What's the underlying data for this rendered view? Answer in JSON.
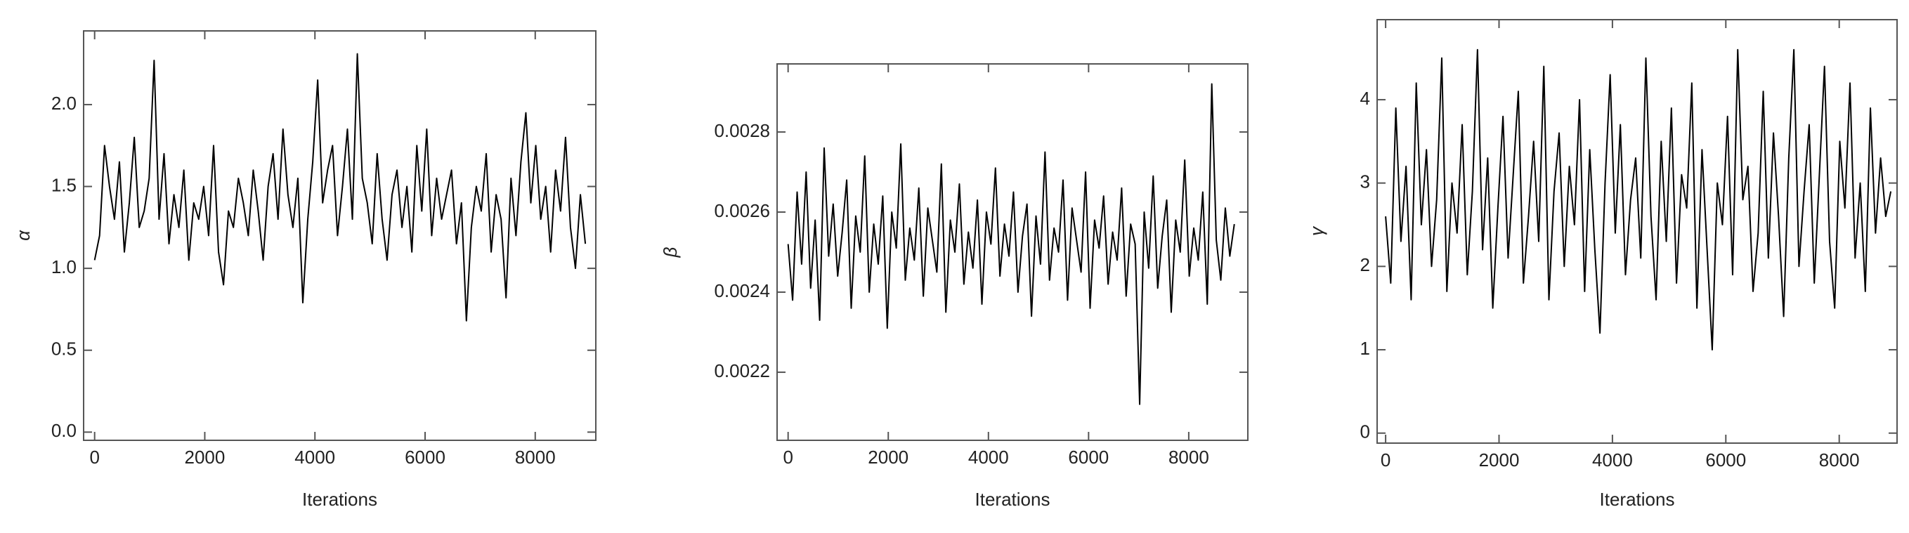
{
  "chart_data": [
    {
      "type": "line",
      "xlabel": "Iterations",
      "ylabel": "α",
      "color": "#000000",
      "xlim": [
        -200,
        9100
      ],
      "ylim": [
        -0.05,
        2.45
      ],
      "xticks": [
        0,
        2000,
        4000,
        6000,
        8000
      ],
      "yticks": [
        {
          "value": 0,
          "label": "0.0"
        },
        0.5,
        {
          "value": 1,
          "label": "1.0"
        },
        1.5,
        {
          "value": 2,
          "label": "2.0"
        }
      ],
      "x": [
        0,
        90,
        180,
        270,
        360,
        450,
        540,
        630,
        720,
        810,
        900,
        990,
        1080,
        1170,
        1260,
        1350,
        1440,
        1530,
        1620,
        1710,
        1800,
        1890,
        1980,
        2070,
        2160,
        2250,
        2340,
        2430,
        2520,
        2610,
        2700,
        2790,
        2880,
        2970,
        3060,
        3150,
        3240,
        3330,
        3420,
        3510,
        3600,
        3690,
        3780,
        3870,
        3960,
        4050,
        4140,
        4230,
        4320,
        4410,
        4500,
        4590,
        4680,
        4770,
        4860,
        4950,
        5040,
        5130,
        5220,
        5310,
        5400,
        5490,
        5580,
        5670,
        5760,
        5850,
        5940,
        6030,
        6120,
        6210,
        6300,
        6390,
        6480,
        6570,
        6660,
        6750,
        6840,
        6930,
        7020,
        7110,
        7200,
        7290,
        7380,
        7470,
        7560,
        7650,
        7740,
        7830,
        7920,
        8010,
        8100,
        8190,
        8280,
        8370,
        8460,
        8550,
        8640,
        8730,
        8820,
        8910
      ],
      "values": [
        1.05,
        1.2,
        1.75,
        1.5,
        1.3,
        1.65,
        1.1,
        1.4,
        1.8,
        1.25,
        1.35,
        1.55,
        2.27,
        1.3,
        1.7,
        1.15,
        1.45,
        1.25,
        1.6,
        1.05,
        1.4,
        1.3,
        1.5,
        1.2,
        1.75,
        1.1,
        0.9,
        1.35,
        1.25,
        1.55,
        1.4,
        1.2,
        1.6,
        1.35,
        1.05,
        1.5,
        1.7,
        1.3,
        1.85,
        1.45,
        1.25,
        1.55,
        0.79,
        1.3,
        1.65,
        2.15,
        1.4,
        1.6,
        1.75,
        1.2,
        1.5,
        1.85,
        1.3,
        2.31,
        1.55,
        1.4,
        1.15,
        1.7,
        1.3,
        1.05,
        1.45,
        1.6,
        1.25,
        1.5,
        1.1,
        1.75,
        1.35,
        1.85,
        1.2,
        1.55,
        1.3,
        1.45,
        1.6,
        1.15,
        1.4,
        0.68,
        1.25,
        1.5,
        1.35,
        1.7,
        1.1,
        1.45,
        1.3,
        0.82,
        1.55,
        1.2,
        1.65,
        1.95,
        1.4,
        1.75,
        1.3,
        1.5,
        1.1,
        1.6,
        1.35,
        1.8,
        1.25,
        1.0,
        1.45,
        1.15
      ]
    },
    {
      "type": "line",
      "xlabel": "Iterations",
      "ylabel": "β",
      "color": "#000000",
      "xlim": [
        -220,
        9180
      ],
      "ylim": [
        0.00203,
        0.00297
      ],
      "xticks": [
        0,
        2000,
        4000,
        6000,
        8000
      ],
      "yticks": [
        0.0022,
        0.0024,
        0.0026,
        0.0028
      ],
      "x": [
        0,
        90,
        180,
        270,
        360,
        450,
        540,
        630,
        720,
        810,
        900,
        990,
        1080,
        1170,
        1260,
        1350,
        1440,
        1530,
        1620,
        1710,
        1800,
        1890,
        1980,
        2070,
        2160,
        2250,
        2340,
        2430,
        2520,
        2610,
        2700,
        2790,
        2880,
        2970,
        3060,
        3150,
        3240,
        3330,
        3420,
        3510,
        3600,
        3690,
        3780,
        3870,
        3960,
        4050,
        4140,
        4230,
        4320,
        4410,
        4500,
        4590,
        4680,
        4770,
        4860,
        4950,
        5040,
        5130,
        5220,
        5310,
        5400,
        5490,
        5580,
        5670,
        5760,
        5850,
        5940,
        6030,
        6120,
        6210,
        6300,
        6390,
        6480,
        6570,
        6660,
        6750,
        6840,
        6930,
        7020,
        7110,
        7200,
        7290,
        7380,
        7470,
        7560,
        7650,
        7740,
        7830,
        7920,
        8010,
        8100,
        8190,
        8280,
        8370,
        8460,
        8550,
        8640,
        8730,
        8820,
        8910
      ],
      "values": [
        0.00252,
        0.00238,
        0.00265,
        0.00247,
        0.0027,
        0.00241,
        0.00258,
        0.00233,
        0.00276,
        0.00249,
        0.00262,
        0.00244,
        0.00255,
        0.00268,
        0.00236,
        0.00259,
        0.0025,
        0.00274,
        0.0024,
        0.00257,
        0.00247,
        0.00264,
        0.00231,
        0.0026,
        0.00251,
        0.00277,
        0.00243,
        0.00256,
        0.00248,
        0.00266,
        0.00239,
        0.00261,
        0.00253,
        0.00245,
        0.00272,
        0.00235,
        0.00258,
        0.0025,
        0.00267,
        0.00242,
        0.00255,
        0.00246,
        0.00263,
        0.00237,
        0.0026,
        0.00252,
        0.00271,
        0.00244,
        0.00257,
        0.00249,
        0.00265,
        0.0024,
        0.00254,
        0.00262,
        0.00234,
        0.00259,
        0.00247,
        0.00275,
        0.00243,
        0.00256,
        0.0025,
        0.00268,
        0.00238,
        0.00261,
        0.00253,
        0.00245,
        0.0027,
        0.00236,
        0.00258,
        0.00251,
        0.00264,
        0.00242,
        0.00255,
        0.00248,
        0.00266,
        0.00239,
        0.00257,
        0.00252,
        0.00212,
        0.0026,
        0.00246,
        0.00269,
        0.00241,
        0.00254,
        0.00263,
        0.00235,
        0.00258,
        0.0025,
        0.00273,
        0.00244,
        0.00256,
        0.00248,
        0.00265,
        0.00237,
        0.00292,
        0.00253,
        0.00243,
        0.00261,
        0.00249,
        0.00257
      ]
    },
    {
      "type": "line",
      "xlabel": "Iterations",
      "ylabel": "γ",
      "color": "#000000",
      "xlim": [
        -150,
        9020
      ],
      "ylim": [
        -0.12,
        4.96
      ],
      "xticks": [
        0,
        2000,
        4000,
        6000,
        8000
      ],
      "yticks": [
        0,
        1,
        2,
        3,
        4
      ],
      "x": [
        0,
        90,
        180,
        270,
        360,
        450,
        540,
        630,
        720,
        810,
        900,
        990,
        1080,
        1170,
        1260,
        1350,
        1440,
        1530,
        1620,
        1710,
        1800,
        1890,
        1980,
        2070,
        2160,
        2250,
        2340,
        2430,
        2520,
        2610,
        2700,
        2790,
        2880,
        2970,
        3060,
        3150,
        3240,
        3330,
        3420,
        3510,
        3600,
        3690,
        3780,
        3870,
        3960,
        4050,
        4140,
        4230,
        4320,
        4410,
        4500,
        4590,
        4680,
        4770,
        4860,
        4950,
        5040,
        5130,
        5220,
        5310,
        5400,
        5490,
        5580,
        5670,
        5760,
        5850,
        5940,
        6030,
        6120,
        6210,
        6300,
        6390,
        6480,
        6570,
        6660,
        6750,
        6840,
        6930,
        7020,
        7110,
        7200,
        7290,
        7380,
        7470,
        7560,
        7650,
        7740,
        7830,
        7920,
        8010,
        8100,
        8190,
        8280,
        8370,
        8460,
        8550,
        8640,
        8730,
        8820,
        8910
      ],
      "values": [
        2.6,
        1.8,
        3.9,
        2.3,
        3.2,
        1.6,
        4.2,
        2.5,
        3.4,
        2.0,
        2.8,
        4.5,
        1.7,
        3.0,
        2.4,
        3.7,
        1.9,
        2.9,
        4.6,
        2.2,
        3.3,
        1.5,
        2.7,
        3.8,
        2.1,
        3.1,
        4.1,
        1.8,
        2.6,
        3.5,
        2.3,
        4.4,
        1.6,
        2.9,
        3.6,
        2.0,
        3.2,
        2.5,
        4.0,
        1.7,
        3.4,
        2.2,
        1.2,
        3.0,
        4.3,
        2.4,
        3.7,
        1.9,
        2.8,
        3.3,
        2.1,
        4.5,
        2.6,
        1.6,
        3.5,
        2.3,
        3.9,
        1.8,
        3.1,
        2.7,
        4.2,
        1.5,
        3.4,
        2.2,
        1.0,
        3.0,
        2.5,
        3.8,
        1.9,
        4.6,
        2.8,
        3.2,
        1.7,
        2.4,
        4.1,
        2.1,
        3.6,
        2.6,
        1.4,
        3.3,
        4.6,
        2.0,
        2.9,
        3.7,
        1.8,
        3.1,
        4.4,
        2.3,
        1.5,
        3.5,
        2.7,
        4.2,
        2.1,
        3.0,
        1.7,
        3.9,
        2.4,
        3.3,
        2.6,
        2.9
      ]
    }
  ]
}
